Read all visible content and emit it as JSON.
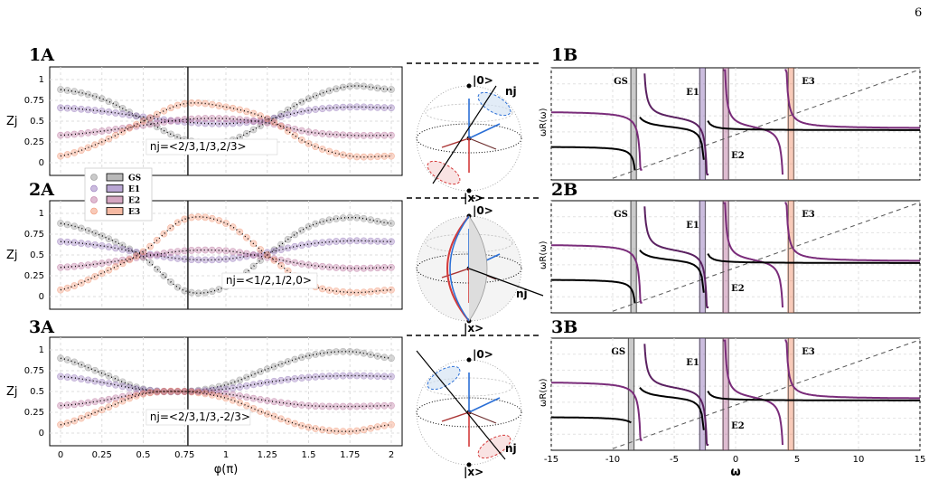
{
  "page_number": "6",
  "colors": {
    "GS": "#8a8a8a",
    "E1": "#8b6bb5",
    "E2": "#b86a98",
    "E3": "#f08a64"
  },
  "legend": [
    "GS",
    "E1",
    "E2",
    "E3"
  ],
  "chart_data": [
    {
      "panel": "1A",
      "type": "line",
      "ylabel": "Zj",
      "xlabel": "",
      "annotation": "nj=<2/3,1/3,2/3>",
      "vline": 0.77,
      "xlim": [
        0,
        2
      ],
      "ylim": [
        0,
        1
      ],
      "xticks": [
        0,
        0.25,
        0.5,
        0.75,
        1,
        1.25,
        1.5,
        1.75,
        2
      ],
      "yticks": [
        "0",
        "0.25",
        "0.5",
        "0.75",
        "1"
      ],
      "series": [
        {
          "name": "GS",
          "x": [
            0,
            0.25,
            0.5,
            0.75,
            1,
            1.25,
            1.5,
            1.75,
            2
          ],
          "values": [
            0.88,
            0.77,
            0.52,
            0.28,
            0.25,
            0.49,
            0.77,
            0.92,
            0.88
          ]
        },
        {
          "name": "E1",
          "x": [
            0,
            0.25,
            0.5,
            0.75,
            1,
            1.25,
            1.5,
            1.75,
            2
          ],
          "values": [
            0.66,
            0.62,
            0.55,
            0.49,
            0.47,
            0.52,
            0.63,
            0.67,
            0.66
          ]
        },
        {
          "name": "E2",
          "x": [
            0,
            0.25,
            0.5,
            0.75,
            1,
            1.25,
            1.5,
            1.75,
            2
          ],
          "values": [
            0.33,
            0.38,
            0.45,
            0.52,
            0.53,
            0.48,
            0.37,
            0.33,
            0.33
          ]
        },
        {
          "name": "E3",
          "x": [
            0,
            0.25,
            0.5,
            0.75,
            1,
            1.25,
            1.5,
            1.75,
            2
          ],
          "values": [
            0.08,
            0.25,
            0.5,
            0.71,
            0.67,
            0.53,
            0.23,
            0.08,
            0.08
          ]
        }
      ]
    },
    {
      "panel": "2A",
      "type": "line",
      "ylabel": "Zj",
      "xlabel": "",
      "annotation": "nj=<1/2,1/2,0>",
      "vline": 0.77,
      "xlim": [
        0,
        2
      ],
      "ylim": [
        0,
        1
      ],
      "xticks": [
        0,
        0.25,
        0.5,
        0.75,
        1,
        1.25,
        1.5,
        1.75,
        2
      ],
      "yticks": [
        "0",
        "0.25",
        "0.5",
        "0.75",
        "1"
      ],
      "series": [
        {
          "name": "GS",
          "x": [
            0,
            0.25,
            0.5,
            0.75,
            1,
            1.25,
            1.5,
            1.75,
            2
          ],
          "values": [
            0.88,
            0.73,
            0.47,
            0.07,
            0.12,
            0.5,
            0.84,
            0.95,
            0.88
          ]
        },
        {
          "name": "E1",
          "x": [
            0,
            0.25,
            0.5,
            0.75,
            1,
            1.25,
            1.5,
            1.75,
            2
          ],
          "values": [
            0.66,
            0.61,
            0.52,
            0.45,
            0.45,
            0.53,
            0.63,
            0.67,
            0.66
          ]
        },
        {
          "name": "E2",
          "x": [
            0,
            0.25,
            0.5,
            0.75,
            1,
            1.25,
            1.5,
            1.75,
            2
          ],
          "values": [
            0.35,
            0.4,
            0.48,
            0.55,
            0.55,
            0.47,
            0.38,
            0.34,
            0.35
          ]
        },
        {
          "name": "E3",
          "x": [
            0,
            0.25,
            0.5,
            0.75,
            1,
            1.25,
            1.5,
            1.75,
            2
          ],
          "values": [
            0.08,
            0.28,
            0.54,
            0.93,
            0.88,
            0.5,
            0.15,
            0.05,
            0.08
          ]
        }
      ]
    },
    {
      "panel": "3A",
      "type": "line",
      "ylabel": "Zj",
      "xlabel": "φ(π)",
      "annotation": "nj=<2/3,1/3,-2/3>",
      "vline": 0.77,
      "xlim": [
        0,
        2
      ],
      "ylim": [
        0,
        1
      ],
      "xticks": [
        0,
        0.25,
        0.5,
        0.75,
        1,
        1.25,
        1.5,
        1.75,
        2
      ],
      "yticks": [
        "0",
        "0.25",
        "0.5",
        "0.75",
        "1"
      ],
      "series": [
        {
          "name": "GS",
          "x": [
            0,
            0.25,
            0.5,
            0.75,
            1,
            1.25,
            1.5,
            1.75,
            2
          ],
          "values": [
            0.9,
            0.72,
            0.53,
            0.5,
            0.58,
            0.77,
            0.93,
            0.98,
            0.9
          ]
        },
        {
          "name": "E1",
          "x": [
            0,
            0.25,
            0.5,
            0.75,
            1,
            1.25,
            1.5,
            1.75,
            2
          ],
          "values": [
            0.68,
            0.61,
            0.52,
            0.5,
            0.53,
            0.61,
            0.67,
            0.69,
            0.68
          ]
        },
        {
          "name": "E2",
          "x": [
            0,
            0.25,
            0.5,
            0.75,
            1,
            1.25,
            1.5,
            1.75,
            2
          ],
          "values": [
            0.33,
            0.39,
            0.48,
            0.5,
            0.47,
            0.39,
            0.33,
            0.32,
            0.33
          ]
        },
        {
          "name": "E3",
          "x": [
            0,
            0.25,
            0.5,
            0.75,
            1,
            1.25,
            1.5,
            1.75,
            2
          ],
          "values": [
            0.1,
            0.28,
            0.47,
            0.5,
            0.42,
            0.23,
            0.07,
            0.02,
            0.1
          ]
        }
      ]
    },
    {
      "panel": "1B",
      "type": "line",
      "ylabel": "ωR(ω)",
      "xlabel": "",
      "xlim": [
        -15,
        15
      ],
      "ylim": [
        -3,
        4
      ],
      "states": [
        {
          "label": "GS",
          "x": -8.3
        },
        {
          "label": "E1",
          "x": -2.7
        },
        {
          "label": "E2",
          "x": -0.8
        },
        {
          "label": "E3",
          "x": 4.5
        }
      ]
    },
    {
      "panel": "2B",
      "type": "line",
      "ylabel": "ωR(ω)",
      "xlabel": "",
      "xlim": [
        -15,
        15
      ],
      "ylim": [
        -3,
        4
      ],
      "states": [
        {
          "label": "GS",
          "x": -8.3
        },
        {
          "label": "E1",
          "x": -2.7
        },
        {
          "label": "E2",
          "x": -0.8
        },
        {
          "label": "E3",
          "x": 4.5
        }
      ]
    },
    {
      "panel": "3B",
      "type": "line",
      "ylabel": "ωR(ω)",
      "xlabel": "ω",
      "xlim": [
        -15,
        15
      ],
      "ylim": [
        -3,
        4
      ],
      "xticks": [
        "-15",
        "-10",
        "-5",
        "0",
        "5",
        "10",
        "15"
      ],
      "states": [
        {
          "label": "GS",
          "x": -8.5
        },
        {
          "label": "E1",
          "x": -2.7
        },
        {
          "label": "E2",
          "x": -0.8
        },
        {
          "label": "E3",
          "x": 4.5
        }
      ]
    }
  ],
  "bloch": {
    "ket0": "|0>",
    "ketx": "|x>",
    "nj": "nj"
  }
}
